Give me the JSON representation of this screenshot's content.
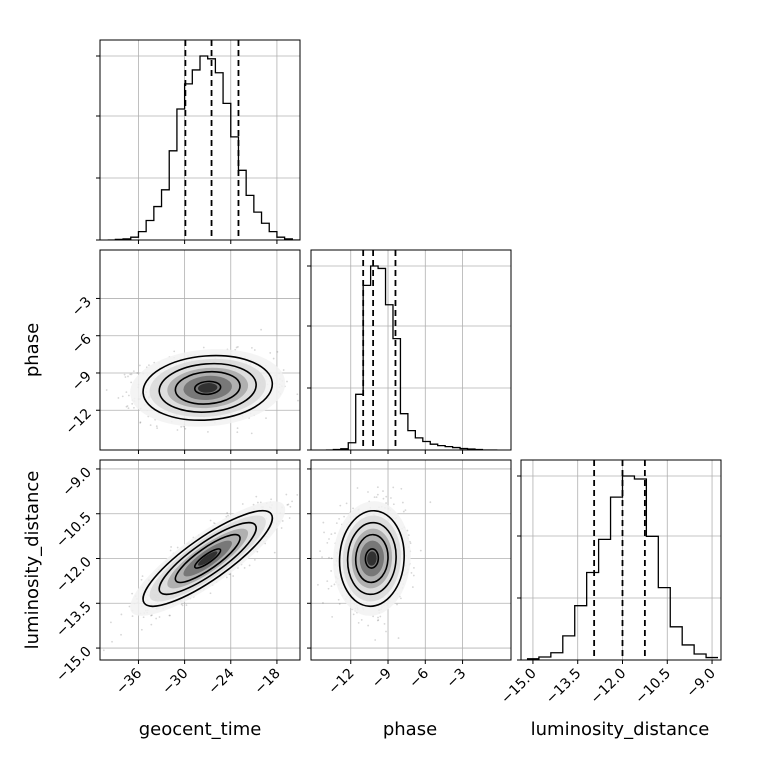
{
  "chart_data": {
    "type": "corner",
    "parameters": [
      "geocent_time",
      "phase",
      "luminosity_distance"
    ],
    "axis_labels": {
      "geocent_time": "geocent_time",
      "phase": "phase",
      "luminosity_distance": "luminosity_distance"
    },
    "ranges": {
      "geocent_time": [
        -41,
        -15
      ],
      "phase": [
        -15.2,
        0.9
      ],
      "luminosity_distance": [
        -15.4,
        -8.7
      ]
    },
    "ticks": {
      "geocent_time": [
        -36,
        -30,
        -24,
        -18
      ],
      "phase": [
        -12,
        -9,
        -6,
        -3
      ],
      "luminosity_distance": [
        -15.0,
        -13.5,
        -12.0,
        -10.5,
        -9.0
      ]
    },
    "tick_labels": {
      "geocent_time": [
        "−36",
        "−30",
        "−24",
        "−18"
      ],
      "phase": [
        "−12",
        "−9",
        "−6",
        "−3"
      ],
      "luminosity_distance": [
        "−15.0",
        "−13.5",
        "−12.0",
        "−10.5",
        "−9.0"
      ]
    },
    "grid": true,
    "quantiles": {
      "geocent_time": [
        -29.9,
        -26.5,
        -23.0
      ],
      "phase": [
        -11.0,
        -10.2,
        -8.4
      ],
      "luminosity_distance": [
        -12.95,
        -12.0,
        -11.25
      ]
    },
    "histograms": {
      "geocent_time": {
        "bin_edges": [
          -40.0,
          -39.0,
          -38.0,
          -37.0,
          -36.0,
          -35.0,
          -34.0,
          -33.0,
          -32.0,
          -31.0,
          -30.0,
          -29.0,
          -28.0,
          -27.0,
          -26.0,
          -25.0,
          -24.0,
          -23.0,
          -22.0,
          -21.0,
          -20.0,
          -19.0,
          -18.0,
          -17.0,
          -16.0,
          -15.0
        ],
        "counts": [
          0,
          2,
          4,
          10,
          30,
          70,
          120,
          180,
          320,
          470,
          560,
          610,
          660,
          650,
          600,
          490,
          370,
          250,
          160,
          100,
          60,
          30,
          10,
          4,
          0
        ]
      },
      "phase": {
        "bin_edges": [
          -14.0,
          -13.4,
          -12.8,
          -12.2,
          -11.6,
          -11.0,
          -10.4,
          -9.8,
          -9.2,
          -8.6,
          -8.0,
          -7.4,
          -6.8,
          -6.2,
          -5.6,
          -5.0,
          -4.4,
          -3.8,
          -3.2,
          -2.6,
          -2.0,
          -1.4,
          -0.8,
          -0.2
        ],
        "counts": [
          0,
          2,
          5,
          30,
          230,
          680,
          760,
          750,
          600,
          460,
          150,
          80,
          50,
          35,
          24,
          18,
          14,
          10,
          6,
          4,
          2,
          0,
          0
        ]
      },
      "luminosity_distance": {
        "bin_edges": [
          -15.2,
          -14.8,
          -14.4,
          -14.0,
          -13.6,
          -13.2,
          -12.8,
          -12.4,
          -12.0,
          -11.6,
          -11.2,
          -10.8,
          -10.4,
          -10.0,
          -9.6,
          -9.2,
          -8.8
        ],
        "counts": [
          2,
          5,
          12,
          40,
          90,
          145,
          200,
          270,
          305,
          300,
          205,
          120,
          55,
          25,
          10,
          4
        ]
      }
    },
    "joint_2d": [
      {
        "x": "geocent_time",
        "y": "phase",
        "center": [
          -27.0,
          -10.2
        ],
        "spread": [
          4.2,
          1.3
        ],
        "correlation": 0.12
      },
      {
        "x": "geocent_time",
        "y": "luminosity_distance",
        "center": [
          -27.0,
          -12.0
        ],
        "spread": [
          4.2,
          0.8
        ],
        "correlation": 0.85
      },
      {
        "x": "phase",
        "y": "luminosity_distance",
        "center": [
          -10.3,
          -12.0
        ],
        "spread": [
          1.3,
          0.8
        ],
        "correlation": 0.05
      }
    ]
  }
}
